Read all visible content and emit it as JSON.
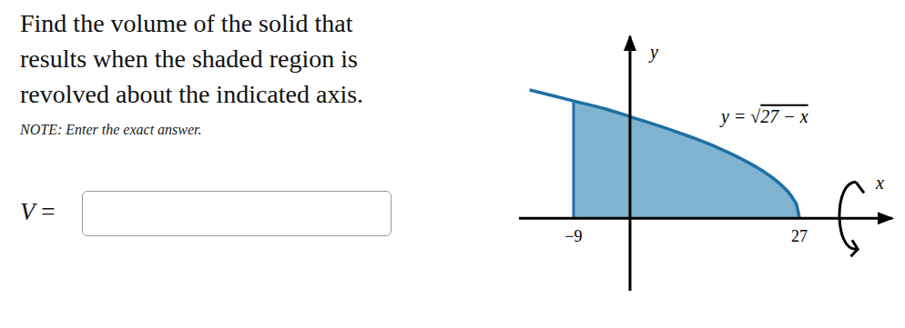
{
  "document": {
    "problem_lines": [
      "Find the volume of the solid that",
      "results when the shaded region is",
      "revolved about the indicated axis."
    ],
    "note": "NOTE: Enter the exact answer.",
    "answer_label": "V ="
  },
  "chart_data": {
    "type": "area",
    "x": [
      -16,
      -9,
      -4,
      0,
      5,
      9,
      14,
      18,
      22,
      24,
      26,
      26.6,
      27
    ],
    "series": [
      {
        "name": "y = √27 − x",
        "color": "#1f6fa3",
        "values": [
          6.56,
          6,
          5.6,
          5.2,
          4.69,
          4.24,
          3.61,
          3,
          2.24,
          1.73,
          1,
          0.63,
          0
        ]
      }
    ],
    "region": [
      -9,
      27
    ],
    "region_color": "#7fb3d0",
    "xlim": [
      -17.7,
      41.8
    ],
    "ylim": [
      -3.7,
      9.3
    ],
    "xticks": [
      {
        "value": -9,
        "label": "−9"
      },
      27
    ],
    "yticks": [],
    "xlabel": "x",
    "ylabel": "y",
    "tick_labels": "x"
  }
}
